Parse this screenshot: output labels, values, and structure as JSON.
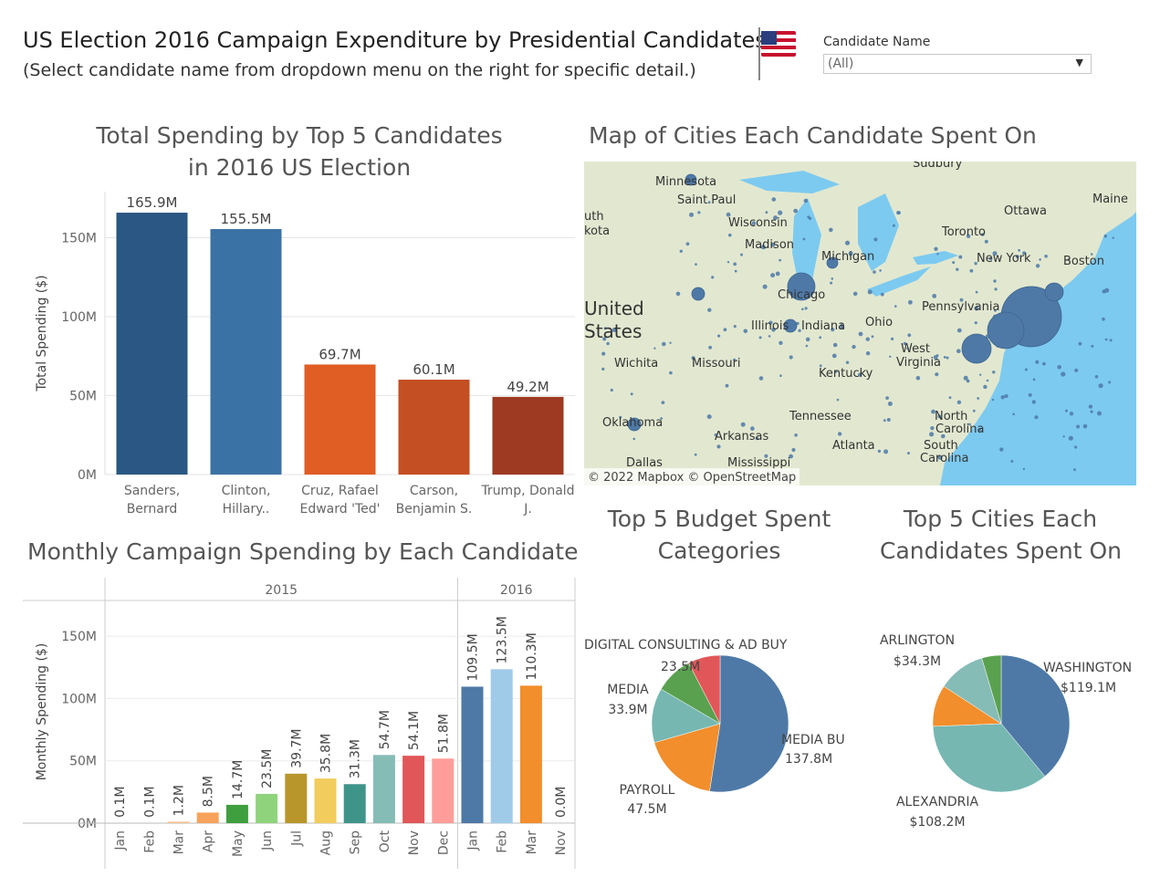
{
  "header": {
    "title": "US Election 2016 Campaign Expenditure by Presidential Candidates",
    "subtitle": "(Select candidate name from dropdown menu on the right for specific detail.)",
    "filter_label": "Candidate Name",
    "filter_value": "(All)"
  },
  "sections": {
    "top5_title_line1": "Total Spending by Top 5 Candidates",
    "top5_title_line2": "in 2016 US Election",
    "map_title": "Map of Cities Each Candidate Spent On",
    "monthly_title": "Monthly Campaign Spending by Each Candidate",
    "budget_title_line1": "Top 5 Budget Spent",
    "budget_title_line2": "Categories",
    "cities_title_line1": "Top 5 Cities Each",
    "cities_title_line2": "Candidates Spent On"
  },
  "map": {
    "attribution": "© 2022 Mapbox  © OpenStreetMap",
    "labels": [
      "Sudbury",
      "Minnesota",
      "Saint Paul",
      "Maine",
      "Ottawa",
      "Wisconsin",
      "Toronto",
      "Madison",
      "Michigan",
      "New York",
      "Boston",
      "Chicago",
      "Pennsylvania",
      "United",
      "States",
      "Illinois",
      "Indiana",
      "Ohio",
      "West",
      "Virginia",
      "Wichita",
      "Missouri",
      "Kentucky",
      "Oklahoma",
      "Tennessee",
      "North",
      "Carolina",
      "Arkansas",
      "South",
      "Carolina",
      "Atlanta",
      "Mississippi",
      "Dallas",
      "uth",
      "kota"
    ]
  },
  "chart_data": [
    {
      "type": "bar",
      "title": "Total Spending by Top 5 Candidates in 2016 US Election",
      "categories": [
        [
          "Sanders,",
          "Bernard"
        ],
        [
          "Clinton,",
          "Hillary.."
        ],
        [
          "Cruz, Rafael",
          "Edward 'Ted'"
        ],
        [
          "Carson,",
          "Benjamin S."
        ],
        [
          "Trump, Donald",
          "J."
        ]
      ],
      "values": [
        165.9,
        155.5,
        69.7,
        60.1,
        49.2
      ],
      "value_labels": [
        "165.9M",
        "155.5M",
        "69.7M",
        "60.1M",
        "49.2M"
      ],
      "colors": [
        "#2a5783",
        "#3b72a5",
        "#e05d24",
        "#c44f22",
        "#9e3a21"
      ],
      "ylabel": "Total Spending ($)",
      "yticks": [
        "0M",
        "50M",
        "100M",
        "150M"
      ],
      "ylim": [
        0,
        185
      ],
      "grid": true
    },
    {
      "type": "bar",
      "title": "Monthly Campaign Spending by Each Candidate",
      "years": [
        {
          "label": "2015",
          "months": 12
        },
        {
          "label": "2016",
          "months": 4
        }
      ],
      "categories": [
        "Jan",
        "Feb",
        "Mar",
        "Apr",
        "May",
        "Jun",
        "Jul",
        "Aug",
        "Sep",
        "Oct",
        "Nov",
        "Dec",
        "Jan",
        "Feb",
        "Mar",
        "Nov"
      ],
      "values": [
        0.1,
        0.1,
        1.2,
        8.5,
        14.7,
        23.5,
        39.7,
        35.8,
        31.3,
        54.7,
        54.1,
        51.8,
        109.5,
        123.5,
        110.3,
        0.0
      ],
      "value_labels": [
        "0.1M",
        "0.1M",
        "1.2M",
        "8.5M",
        "14.7M",
        "23.5M",
        "39.7M",
        "35.8M",
        "31.3M",
        "54.7M",
        "54.1M",
        "51.8M",
        "109.5M",
        "123.5M",
        "110.3M",
        "0.0M"
      ],
      "colors": [
        "#c9c9c9",
        "#c9c9c9",
        "#f7c38f",
        "#f7a35c",
        "#3f9f3e",
        "#8fd47c",
        "#b8962b",
        "#f2cc5c",
        "#3f9489",
        "#86bcb6",
        "#e15759",
        "#ff9d9a",
        "#4e79a7",
        "#a0cbe8",
        "#f28e2b",
        "#e0e0e0"
      ],
      "ylabel": "Monthly Spending ($)",
      "yticks": [
        "0M",
        "50M",
        "100M",
        "150M"
      ],
      "ylim": [
        0,
        175
      ],
      "grid": true
    },
    {
      "type": "pie",
      "title": "Top 5 Budget Spent Categories",
      "labels": [
        "MEDIA BUY",
        "PAYROLL",
        "MEDIA",
        "DIGITAL CONSULTING & AD BUY",
        "(unlabeled)"
      ],
      "values": [
        137.8,
        47.5,
        33.9,
        23.5,
        20.0
      ],
      "value_labels": [
        "137.8M",
        "47.5M",
        "33.9M",
        "23.5M",
        ""
      ],
      "colors": [
        "#4e79a7",
        "#f28e2b",
        "#76b7b2",
        "#59a14f",
        "#e15759"
      ]
    },
    {
      "type": "pie",
      "title": "Top 5 Cities Each Candidates Spent On",
      "labels": [
        "WASHINGTON",
        "ALEXANDRIA",
        "",
        "ARLINGTON",
        "(unlabeled)"
      ],
      "values": [
        119.1,
        108.2,
        30.0,
        34.3,
        14.0
      ],
      "value_labels": [
        "$119.1M",
        "$108.2M",
        "",
        "$34.3M",
        ""
      ],
      "colors": [
        "#4e79a7",
        "#76b7b2",
        "#f28e2b",
        "#86bcb6",
        "#59a14f"
      ]
    }
  ]
}
